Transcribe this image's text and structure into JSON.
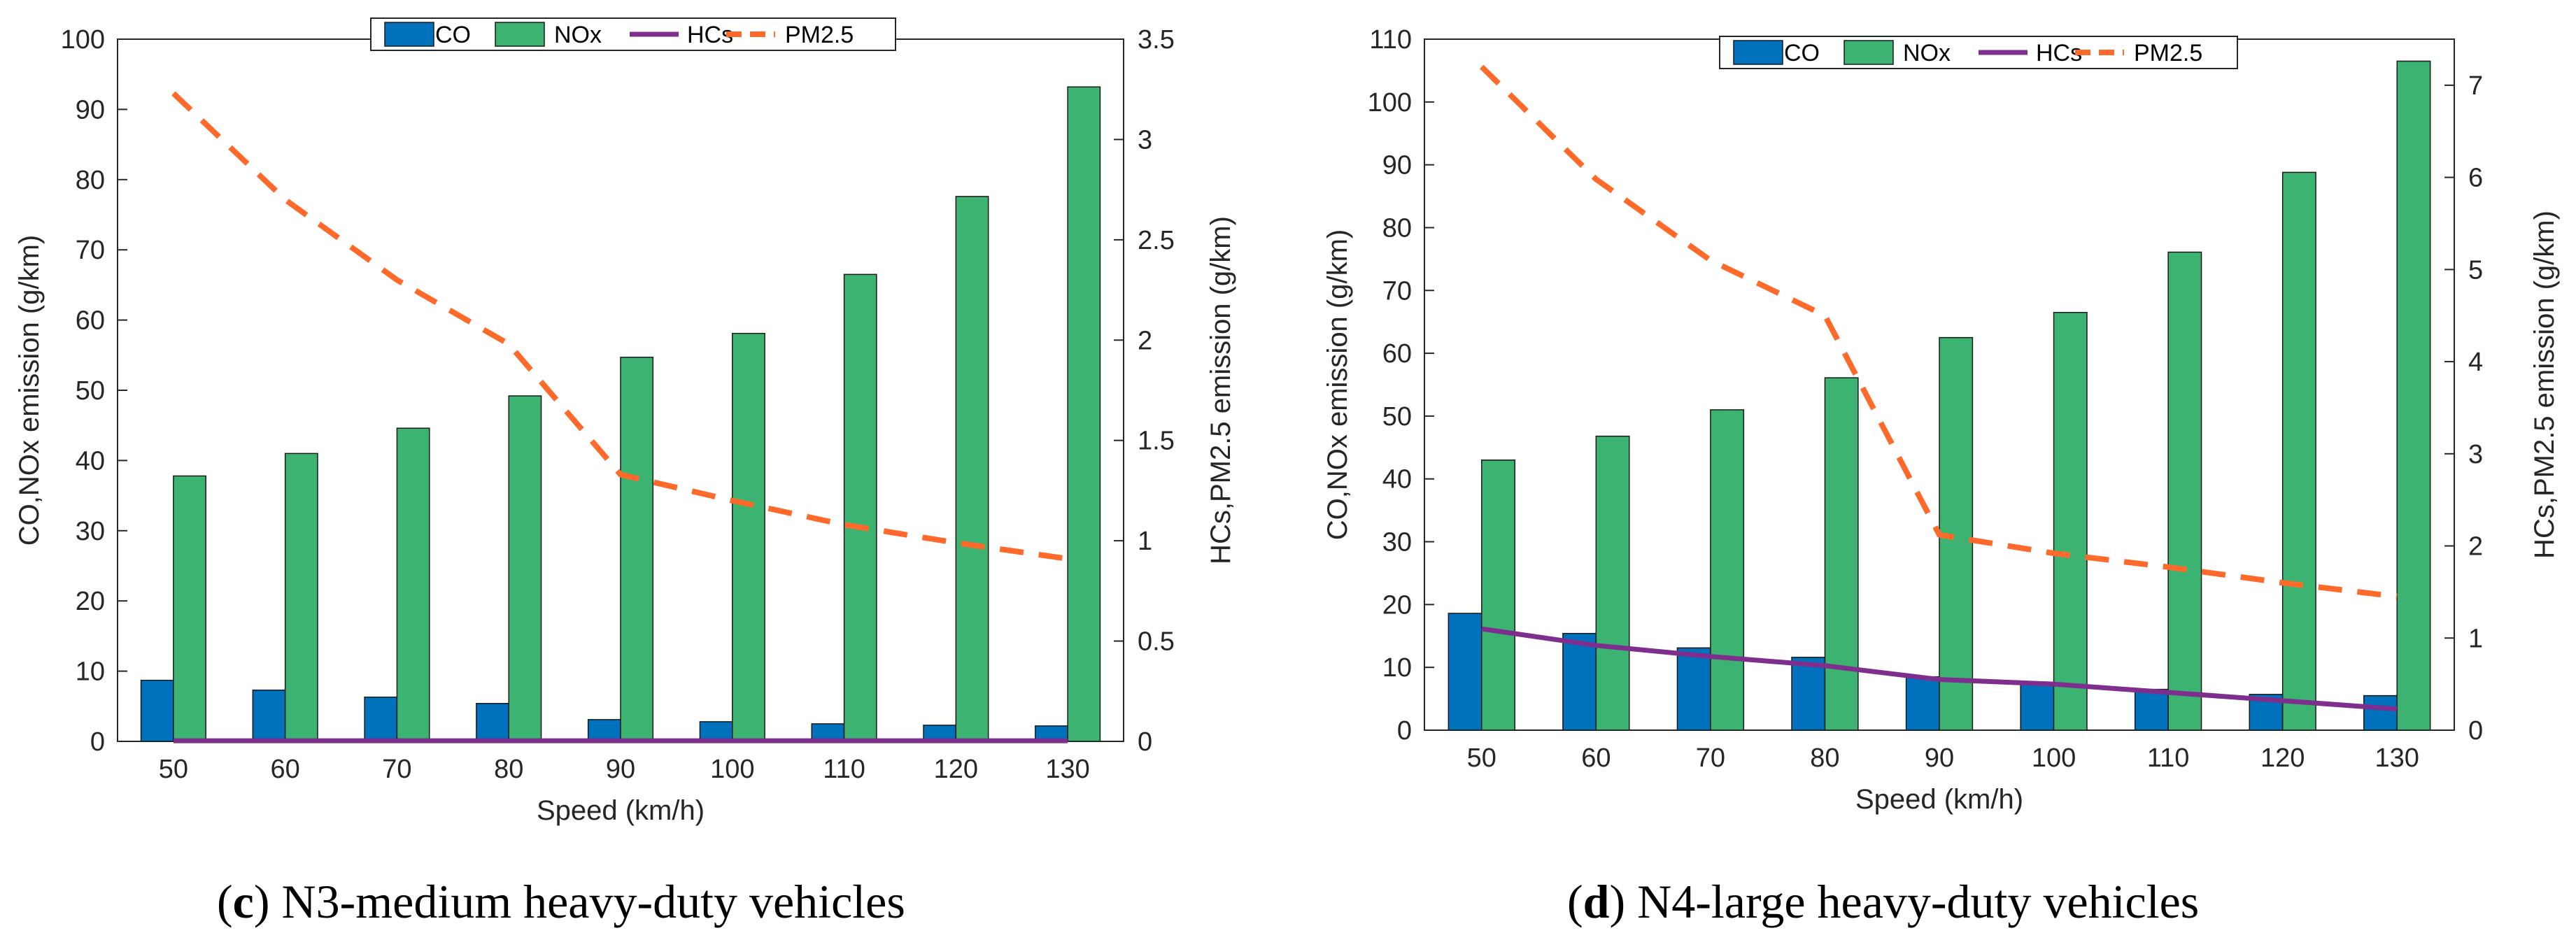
{
  "chart_data": [
    {
      "type": "bar",
      "panel": "c",
      "caption_letter": "c",
      "caption_text": ") N3-medium heavy-duty vehicles",
      "xlabel": "Speed (km/h)",
      "ylabel_left": "CO,NOx emission (g/km)",
      "ylabel_right": "HCs,PM2.5 emission (g/km)",
      "categories": [
        "50",
        "60",
        "70",
        "80",
        "90",
        "100",
        "110",
        "120",
        "130"
      ],
      "ylim_left": [
        0,
        100
      ],
      "yticks_left": [
        0,
        10,
        20,
        30,
        40,
        50,
        60,
        70,
        80,
        90,
        100
      ],
      "ylim_right": [
        0,
        3.5
      ],
      "yticks_right": [
        0,
        0.5,
        1,
        1.5,
        2,
        2.5,
        3,
        3.5
      ],
      "series": [
        {
          "name": "CO",
          "axis": "left",
          "kind": "bar",
          "color": "#0072BD",
          "values": [
            8.7,
            7.3,
            6.3,
            5.4,
            3.1,
            2.8,
            2.5,
            2.3,
            2.2
          ]
        },
        {
          "name": "NOx",
          "axis": "left",
          "kind": "bar",
          "color": "#3CB371",
          "values": [
            37.8,
            41.0,
            44.6,
            49.2,
            54.7,
            58.1,
            66.5,
            77.6,
            93.2
          ]
        },
        {
          "name": "HCs",
          "axis": "right",
          "kind": "line",
          "color": "#7E2F8E",
          "values": [
            0.003,
            0.003,
            0.003,
            0.003,
            0.003,
            0.003,
            0.003,
            0.003,
            0.003
          ]
        },
        {
          "name": "PM2.5",
          "axis": "right",
          "kind": "dashed",
          "color": "#FF6A2B",
          "values": [
            3.23,
            2.7,
            2.3,
            1.98,
            1.33,
            1.2,
            1.08,
            0.99,
            0.91
          ]
        }
      ]
    },
    {
      "type": "bar",
      "panel": "d",
      "caption_letter": "d",
      "caption_text": ") N4-large heavy-duty vehicles",
      "xlabel": "Speed (km/h)",
      "ylabel_left": "CO,NOx emission (g/km)",
      "ylabel_right": "HCs,PM2.5 emission (g/km)",
      "categories": [
        "50",
        "60",
        "70",
        "80",
        "90",
        "100",
        "110",
        "120",
        "130"
      ],
      "ylim_left": [
        0,
        110
      ],
      "yticks_left": [
        0,
        10,
        20,
        30,
        40,
        50,
        60,
        70,
        80,
        90,
        100,
        110
      ],
      "ylim_right": [
        0,
        7.5
      ],
      "yticks_right": [
        0,
        1,
        2,
        3,
        4,
        5,
        6,
        7
      ],
      "series": [
        {
          "name": "CO",
          "axis": "left",
          "kind": "bar",
          "color": "#0072BD",
          "values": [
            18.6,
            15.4,
            13.1,
            11.6,
            8.5,
            7.6,
            6.5,
            5.7,
            5.5
          ]
        },
        {
          "name": "NOx",
          "axis": "left",
          "kind": "bar",
          "color": "#3CB371",
          "values": [
            43.0,
            46.8,
            51.0,
            56.1,
            62.5,
            66.5,
            76.1,
            88.8,
            106.5
          ]
        },
        {
          "name": "HCs",
          "axis": "right",
          "kind": "line",
          "color": "#7E2F8E",
          "values": [
            1.1,
            0.92,
            0.8,
            0.7,
            0.55,
            0.5,
            0.41,
            0.32,
            0.23
          ]
        },
        {
          "name": "PM2.5",
          "axis": "right",
          "kind": "dashed",
          "color": "#FF6A2B",
          "values": [
            7.2,
            5.98,
            5.1,
            4.5,
            2.12,
            1.92,
            1.77,
            1.6,
            1.45
          ]
        }
      ]
    }
  ]
}
